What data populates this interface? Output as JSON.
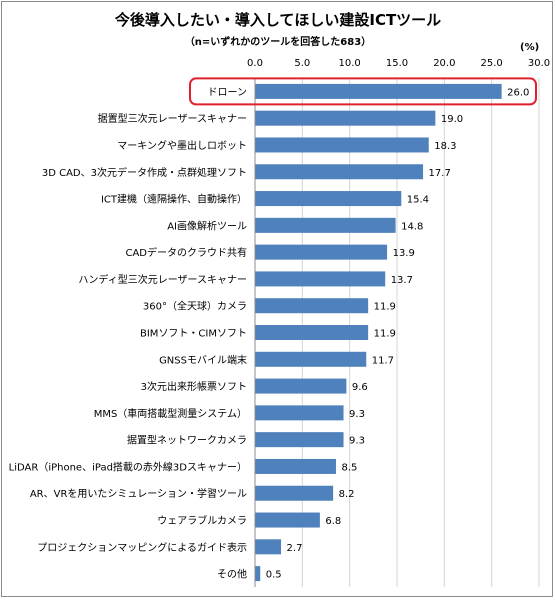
{
  "chart_data": {
    "type": "bar",
    "orientation": "horizontal",
    "title": "今後導入したい・導入してほしい建設ICTツール",
    "subtitle": "（n=いずれかのツールを回答した683）",
    "unit": "(%)",
    "xlim": [
      0,
      30
    ],
    "xticks": [
      "0.0",
      "5.0",
      "10.0",
      "15.0",
      "20.0",
      "25.0",
      "30.0"
    ],
    "grid": true,
    "bar_color": "#4f81bd",
    "highlight_color": "#e0202c",
    "highlight_category": "ドローン",
    "categories": [
      "ドローン",
      "据置型三次元レーザースキャナー",
      "マーキングや墨出しロボット",
      "3D CAD、3次元データ作成・点群処理ソフト",
      "ICT建機（遠隔操作、自動操作）",
      "AI画像解析ツール",
      "CADデータのクラウド共有",
      "ハンディ型三次元レーザースキャナー",
      "360°（全天球）カメラ",
      "BIMソフト・CIMソフト",
      "GNSSモバイル端末",
      "3次元出来形帳票ソフト",
      "MMS（車両搭載型測量システム）",
      "据置型ネットワークカメラ",
      "LiDAR（iPhone、iPad搭載の赤外線3Dスキャナー）",
      "AR、VRを用いたシミュレーション・学習ツール",
      "ウェアラブルカメラ",
      "プロジェクションマッピングによるガイド表示",
      "その他"
    ],
    "values": [
      26.0,
      19.0,
      18.3,
      17.7,
      15.4,
      14.8,
      13.9,
      13.7,
      11.9,
      11.9,
      11.7,
      9.6,
      9.3,
      9.3,
      8.5,
      8.2,
      6.8,
      2.7,
      0.5
    ],
    "value_labels": [
      "26.0",
      "19.0",
      "18.3",
      "17.7",
      "15.4",
      "14.8",
      "13.9",
      "13.7",
      "11.9",
      "11.9",
      "11.7",
      "9.6",
      "9.3",
      "9.3",
      "8.5",
      "8.2",
      "6.8",
      "2.7",
      "0.5"
    ]
  }
}
